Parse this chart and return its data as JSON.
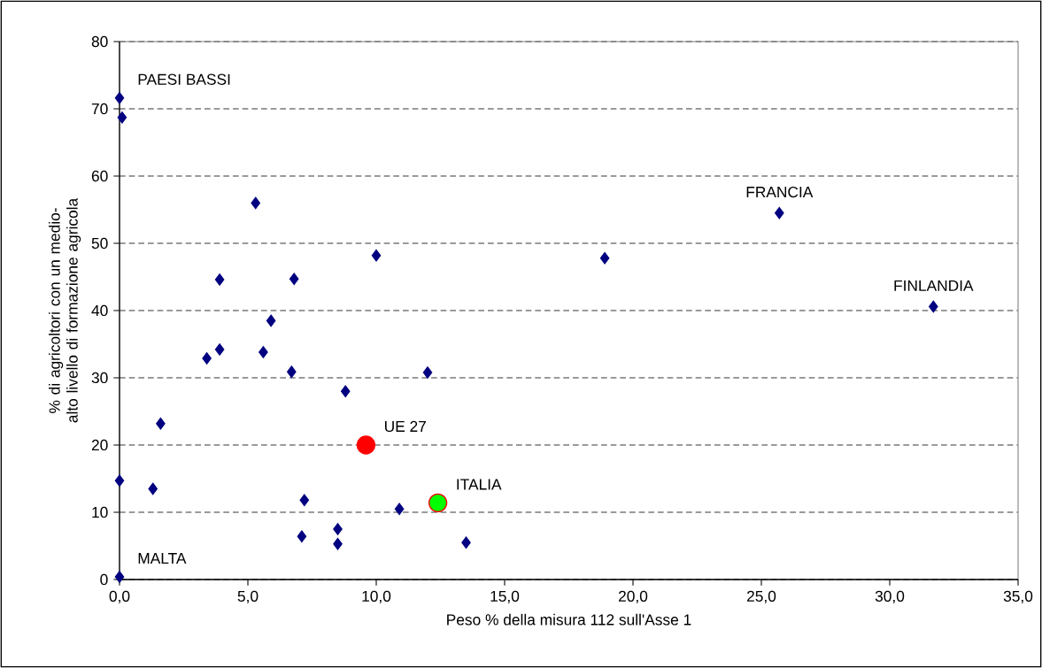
{
  "chart_data": {
    "type": "scatter",
    "xlabel": "Peso % della misura 112 sull'Asse 1",
    "ylabel": "% di agricoltori con un medio-alto livello di formazione agricola",
    "xlim": [
      0,
      35
    ],
    "ylim": [
      0,
      80
    ],
    "xticks": [
      {
        "value": 0,
        "label": "0,0"
      },
      {
        "value": 5,
        "label": "5,0"
      },
      {
        "value": 10,
        "label": "10,0"
      },
      {
        "value": 15,
        "label": "15,0"
      },
      {
        "value": 20,
        "label": "20,0"
      },
      {
        "value": 25,
        "label": "25,0"
      },
      {
        "value": 30,
        "label": "30,0"
      },
      {
        "value": 35,
        "label": "35,0"
      }
    ],
    "yticks": [
      0,
      10,
      20,
      30,
      40,
      50,
      60,
      70,
      80
    ],
    "grid": "y",
    "series": [
      {
        "color": "#000080",
        "marker": "diamond",
        "x": [
          0,
          0.1,
          5.3,
          25.7,
          10.0,
          18.9,
          3.9,
          6.8,
          31.7,
          5.9,
          3.9,
          5.6,
          3.4,
          6.7,
          12.0,
          8.8,
          1.6,
          0,
          1.3,
          7.2,
          10.9,
          7.1,
          8.5,
          8.5,
          13.5,
          0
        ],
        "values": [
          71.6,
          68.7,
          56.0,
          54.5,
          48.2,
          47.8,
          44.6,
          44.7,
          40.6,
          38.5,
          34.2,
          33.8,
          32.9,
          30.9,
          30.8,
          28.0,
          23.2,
          14.7,
          13.5,
          11.8,
          10.5,
          6.4,
          7.5,
          5.3,
          5.5,
          0.4
        ]
      },
      {
        "color": "#ff0000",
        "marker": "circle",
        "x": [
          9.6
        ],
        "values": [
          20.0
        ]
      },
      {
        "color": "#00ff00",
        "marker": "circle",
        "x": [
          12.4
        ],
        "values": [
          11.4
        ]
      }
    ],
    "annotations": [
      {
        "text": "PAESI BASSI",
        "x": 0,
        "y": 71.6
      },
      {
        "text": "FRANCIA",
        "x": 25.7,
        "y": 54.5
      },
      {
        "text": "FINLANDIA",
        "x": 31.7,
        "y": 40.6
      },
      {
        "text": "UE 27",
        "x": 9.6,
        "y": 20.0
      },
      {
        "text": "ITALIA",
        "x": 12.4,
        "y": 11.4
      },
      {
        "text": "MALTA",
        "x": 0,
        "y": 0.4
      }
    ]
  }
}
